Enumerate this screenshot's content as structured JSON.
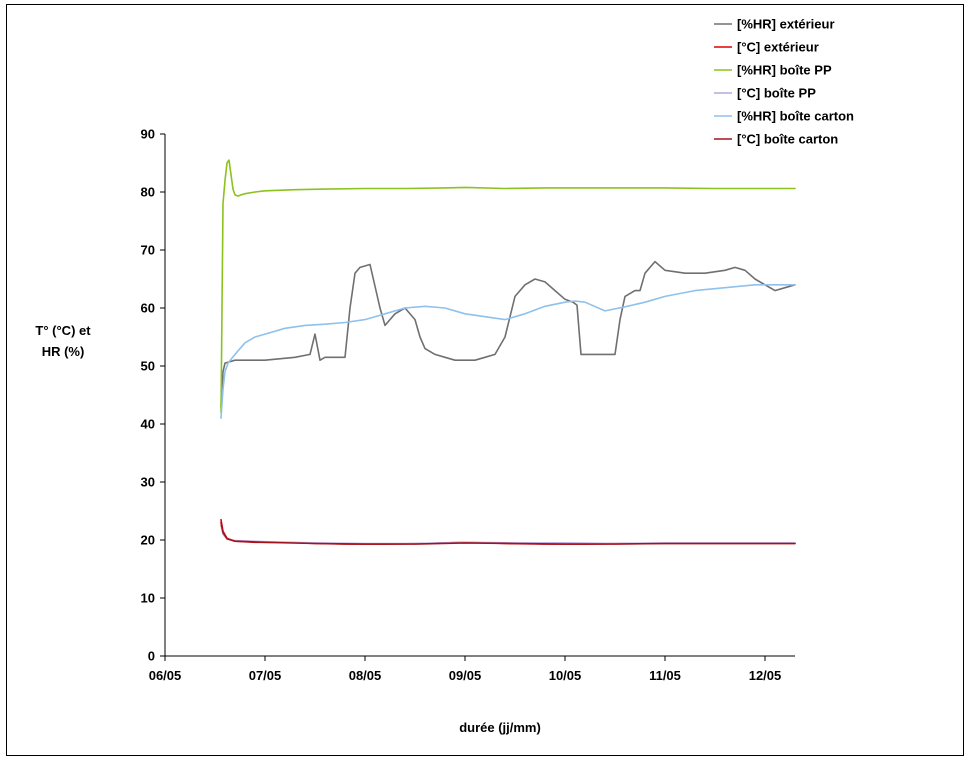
{
  "chart_data": {
    "type": "line",
    "xlabel": "durée (jj/mm)",
    "ylabel_lines": [
      "T° (°C) et",
      "HR (%)"
    ],
    "ylim": [
      0,
      90
    ],
    "yticks": [
      0,
      10,
      20,
      30,
      40,
      50,
      60,
      70,
      80,
      90
    ],
    "xlim": [
      0,
      6.3
    ],
    "xtick_values": [
      0,
      1,
      2,
      3,
      4,
      5,
      6
    ],
    "xtick_labels": [
      "06/05",
      "07/05",
      "08/05",
      "09/05",
      "10/05",
      "11/05",
      "12/05"
    ],
    "grid": false,
    "legend_position": "top-right",
    "series": [
      {
        "name": "[%HR] extérieur",
        "color": "#707070",
        "x": [
          0.56,
          0.58,
          0.6,
          0.7,
          1.0,
          1.3,
          1.45,
          1.5,
          1.55,
          1.6,
          1.7,
          1.8,
          1.85,
          1.9,
          1.95,
          2.05,
          2.15,
          2.2,
          2.3,
          2.4,
          2.5,
          2.55,
          2.6,
          2.7,
          2.8,
          2.9,
          3.0,
          3.1,
          3.2,
          3.3,
          3.4,
          3.5,
          3.55,
          3.6,
          3.7,
          3.8,
          3.9,
          4.0,
          4.08,
          4.12,
          4.16,
          4.3,
          4.4,
          4.5,
          4.55,
          4.6,
          4.7,
          4.75,
          4.8,
          4.9,
          5.0,
          5.2,
          5.4,
          5.6,
          5.7,
          5.8,
          5.9,
          6.0,
          6.1,
          6.2,
          6.3
        ],
        "y": [
          43,
          49,
          50.5,
          51,
          51,
          51.5,
          52,
          55.5,
          51,
          51.5,
          51.5,
          51.5,
          60,
          66,
          67,
          67.5,
          60,
          57,
          59,
          60,
          58,
          55,
          53,
          52,
          51.5,
          51,
          51,
          51,
          51.5,
          52,
          55,
          62,
          63,
          64,
          65,
          64.5,
          63,
          61.5,
          61,
          60.5,
          52,
          52,
          52,
          52,
          58,
          62,
          63,
          63,
          66,
          68,
          66.5,
          66,
          66,
          66.5,
          67,
          66.5,
          65,
          64,
          63,
          63.5,
          64
        ]
      },
      {
        "name": "[°C] extérieur",
        "color": "#e00000",
        "x": [
          0.56,
          0.58,
          0.62,
          0.7,
          0.9,
          1.2,
          1.5,
          1.8,
          2.2,
          2.6,
          3.0,
          3.4,
          3.8,
          4.2,
          4.6,
          5.0,
          5.4,
          5.8,
          6.3
        ],
        "y": [
          23.5,
          21.5,
          20.3,
          19.8,
          19.6,
          19.6,
          19.4,
          19.3,
          19.3,
          19.4,
          19.6,
          19.4,
          19.3,
          19.3,
          19.4,
          19.4,
          19.4,
          19.4,
          19.4
        ]
      },
      {
        "name": "[%HR] boîte PP",
        "color": "#8cc21e",
        "x": [
          0.56,
          0.57,
          0.58,
          0.6,
          0.62,
          0.64,
          0.66,
          0.68,
          0.7,
          0.73,
          0.76,
          0.8,
          0.9,
          1.0,
          1.3,
          1.6,
          2.0,
          2.4,
          2.8,
          3.0,
          3.4,
          3.8,
          4.2,
          4.6,
          5.0,
          5.5,
          6.0,
          6.3
        ],
        "y": [
          42,
          60,
          78,
          82,
          85,
          85.5,
          83,
          80.5,
          79.5,
          79.3,
          79.5,
          79.7,
          80,
          80.2,
          80.4,
          80.5,
          80.6,
          80.6,
          80.7,
          80.8,
          80.6,
          80.7,
          80.7,
          80.7,
          80.7,
          80.6,
          80.6,
          80.6
        ]
      },
      {
        "name": "[°C] boîte PP",
        "color": "#b9a6e0",
        "x": [
          0.56,
          0.58,
          0.62,
          0.7,
          1.0,
          1.5,
          2.0,
          2.5,
          3.0,
          3.5,
          4.0,
          4.5,
          5.0,
          5.5,
          6.0,
          6.3
        ],
        "y": [
          22.5,
          21,
          20.2,
          19.9,
          19.7,
          19.5,
          19.4,
          19.4,
          19.6,
          19.5,
          19.5,
          19.4,
          19.5,
          19.5,
          19.5,
          19.5
        ]
      },
      {
        "name": "[%HR] boîte carton",
        "color": "#8fc1ec",
        "x": [
          0.56,
          0.58,
          0.6,
          0.63,
          0.7,
          0.8,
          0.9,
          1.0,
          1.2,
          1.4,
          1.6,
          1.8,
          2.0,
          2.2,
          2.4,
          2.6,
          2.8,
          3.0,
          3.2,
          3.4,
          3.6,
          3.8,
          4.0,
          4.1,
          4.2,
          4.4,
          4.6,
          4.8,
          5.0,
          5.3,
          5.6,
          5.9,
          6.1,
          6.3
        ],
        "y": [
          41,
          46,
          49,
          50.5,
          52,
          54,
          55,
          55.5,
          56.5,
          57,
          57.2,
          57.5,
          58,
          59,
          60,
          60.3,
          60,
          59,
          58.5,
          58,
          59,
          60.3,
          61,
          61.2,
          61,
          59.5,
          60.2,
          61,
          62,
          63,
          63.5,
          64,
          64,
          64
        ]
      },
      {
        "name": "[°C] boîte carton",
        "color": "#a0141e",
        "x": [
          0.56,
          0.58,
          0.62,
          0.7,
          1.0,
          1.5,
          2.0,
          2.5,
          3.0,
          3.5,
          4.0,
          4.5,
          5.0,
          5.5,
          6.0,
          6.3
        ],
        "y": [
          23,
          21.3,
          20.2,
          19.8,
          19.6,
          19.4,
          19.3,
          19.3,
          19.5,
          19.4,
          19.3,
          19.3,
          19.4,
          19.4,
          19.4,
          19.4
        ]
      }
    ]
  }
}
